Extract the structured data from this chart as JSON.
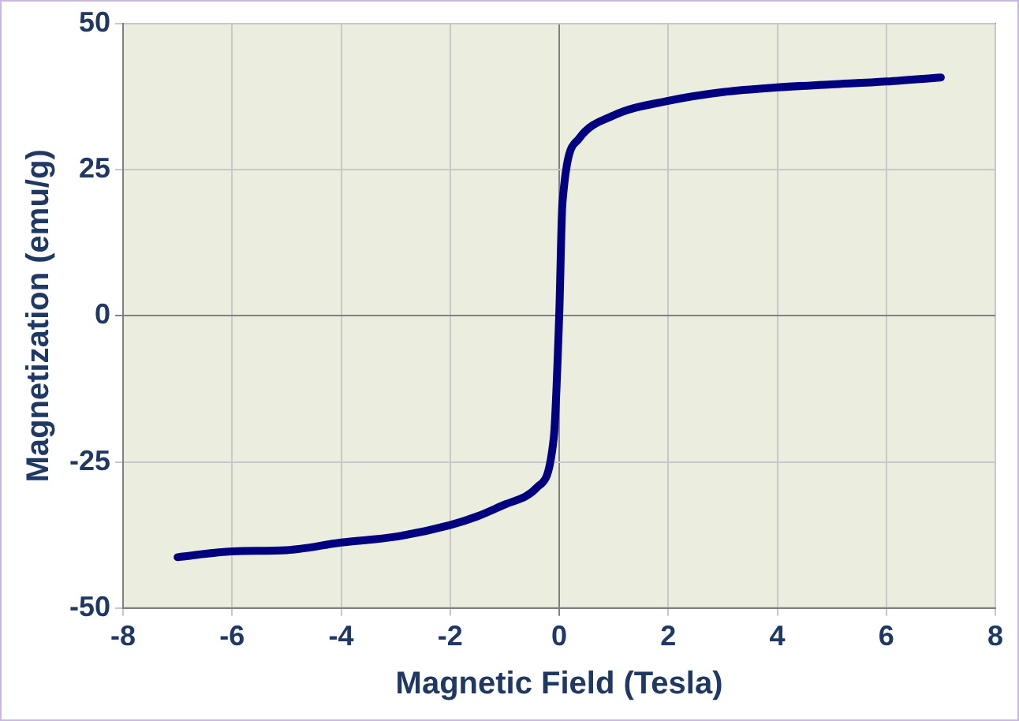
{
  "chart_data": {
    "type": "line",
    "xlabel": "Magnetic Field (Tesla)",
    "ylabel": "Magnetization (emu/g)",
    "x": [
      -7,
      -6,
      -5,
      -4,
      -3,
      -2,
      -1.5,
      -1,
      -0.4,
      -0.1,
      0,
      0.06,
      0.36,
      1,
      2,
      3,
      4,
      5,
      6,
      7
    ],
    "series": [
      {
        "color": "#000080",
        "values": [
          -41.3,
          -40.3,
          -40.1,
          -38.8,
          -37.8,
          -35.8,
          -34.3,
          -32.3,
          -29.3,
          -20.9,
          0,
          19.4,
          30.3,
          34.3,
          36.8,
          38.3,
          39.1,
          39.6,
          40.1,
          40.8
        ]
      }
    ],
    "xlim": [
      -8,
      8
    ],
    "xticks": [
      -8,
      -6,
      -4,
      -2,
      0,
      2,
      4,
      6,
      8
    ],
    "ylim": [
      -50,
      50
    ],
    "yticks": [
      -50,
      -25,
      0,
      25,
      50
    ],
    "grid": true,
    "legend": false,
    "marker": "none",
    "line_style": "solid"
  }
}
